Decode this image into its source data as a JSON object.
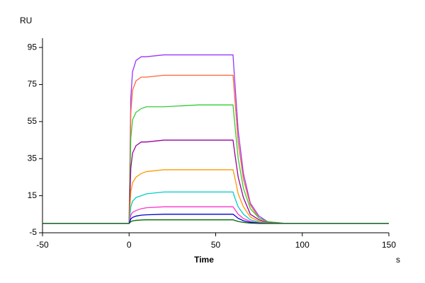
{
  "chart_data": {
    "type": "line",
    "y_label": "RU",
    "x_label": "Time",
    "x_unit": "s",
    "x": [
      -50,
      -1,
      0,
      1,
      2,
      4,
      7,
      10,
      20,
      40,
      60,
      61,
      63,
      66,
      70,
      75,
      80,
      90,
      100,
      150
    ],
    "series": [
      {
        "color": "#9933ff",
        "values": [
          0,
          0,
          0,
          68,
          82,
          88,
          90,
          90,
          91,
          91,
          91,
          77,
          50,
          27,
          11,
          4,
          1,
          0,
          0,
          0
        ]
      },
      {
        "color": "#ff6633",
        "values": [
          0,
          0,
          0,
          60,
          72,
          77,
          79,
          79,
          80,
          80,
          80,
          68,
          44,
          24,
          10,
          3,
          1,
          0,
          0,
          0
        ]
      },
      {
        "color": "#33cc33",
        "values": [
          0,
          0,
          0,
          46,
          56,
          60,
          62,
          63,
          63,
          64,
          64,
          54,
          35,
          19,
          8,
          3,
          1,
          0,
          0,
          0
        ]
      },
      {
        "color": "#990099",
        "values": [
          0,
          0,
          0,
          30,
          38,
          42,
          44,
          44,
          45,
          45,
          45,
          38,
          25,
          14,
          5,
          2,
          0.5,
          0,
          0,
          0
        ]
      },
      {
        "color": "#ff9900",
        "values": [
          0,
          0,
          0,
          17,
          22,
          25,
          27,
          28,
          29,
          29,
          29,
          25,
          16,
          9,
          3.5,
          1.2,
          0.3,
          0,
          0,
          0
        ]
      },
      {
        "color": "#00cccc",
        "values": [
          0,
          0,
          0,
          9,
          12,
          14,
          15,
          16,
          17,
          17,
          17,
          14,
          9,
          5,
          2,
          0.7,
          0.2,
          0,
          0,
          0
        ]
      },
      {
        "color": "#ff33cc",
        "values": [
          0,
          0,
          0,
          4.5,
          6,
          7,
          8,
          8.5,
          9,
          9,
          9,
          7.7,
          5,
          2.7,
          1.1,
          0.4,
          0.1,
          0,
          0,
          0
        ]
      },
      {
        "color": "#0000cc",
        "values": [
          0,
          0,
          0,
          2.5,
          3.3,
          4,
          4.5,
          4.7,
          5,
          5,
          5,
          4.3,
          2.8,
          1.5,
          0.6,
          0.2,
          0,
          0,
          0,
          0
        ]
      },
      {
        "color": "#006600",
        "values": [
          0,
          0,
          0,
          1,
          1.4,
          1.7,
          1.9,
          2,
          2,
          2,
          2,
          1.7,
          1.1,
          0.6,
          0.2,
          0,
          0,
          0,
          0,
          0
        ]
      }
    ],
    "xlim": [
      -50,
      150
    ],
    "xticks": [
      -50,
      0,
      50,
      100,
      150
    ],
    "ylim": [
      -5,
      100
    ],
    "yticks": [
      -5,
      15,
      35,
      55,
      75,
      95
    ],
    "grid": false
  }
}
